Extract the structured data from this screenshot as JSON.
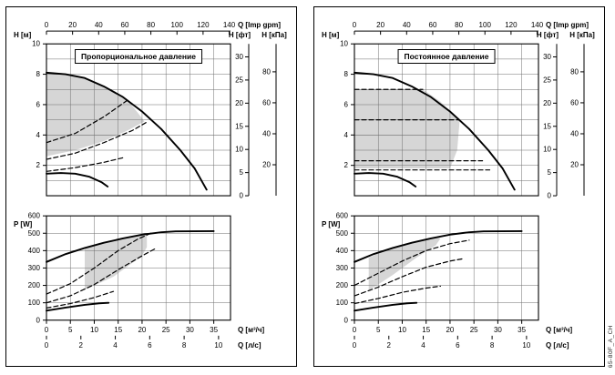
{
  "side_label": "65-80F_A_CH",
  "colors": {
    "curve": "#000000",
    "grid": "#6e6e6e",
    "shade": "#d6d6d6"
  },
  "chart_data": [
    {
      "type": "line",
      "title": "Пропорциональное давление",
      "x_axes": {
        "primary": {
          "label": "Q [м³/ч]",
          "ticks": [
            0,
            5,
            10,
            15,
            20,
            25,
            30,
            35
          ],
          "range": [
            0,
            38.5
          ]
        },
        "top_gpm": {
          "label": "Q [Imp gpm]",
          "ticks": [
            0,
            20,
            40,
            60,
            80,
            100,
            120,
            140
          ],
          "m3h_per_unit": 0.273
        },
        "bottom_ls": {
          "label": "Q [л/с]",
          "ticks": [
            0,
            2,
            4,
            6,
            8,
            10
          ],
          "m3h_per_unit": 3.6
        }
      },
      "y_axes": {
        "head_m": {
          "label": "H [м]",
          "ticks": [
            2,
            4,
            6,
            8,
            10
          ],
          "range": [
            0,
            10
          ]
        },
        "head_ft": {
          "label": "H [фт]",
          "ticks": [
            0,
            5,
            10,
            15,
            20,
            25,
            30
          ],
          "m_per_unit": 0.3048
        },
        "head_kpa": {
          "label": "H [кПа]",
          "ticks": [
            20,
            40,
            60,
            80
          ],
          "m_per_unit": 0.102
        },
        "power_w": {
          "label": "P [W]",
          "ticks": [
            0,
            100,
            200,
            300,
            400,
            500,
            600
          ],
          "range": [
            0,
            600
          ]
        }
      },
      "head_series": [
        {
          "name": "max-speed",
          "style": "solid",
          "points": [
            [
              0,
              8.1
            ],
            [
              4,
              8.0
            ],
            [
              8,
              7.75
            ],
            [
              12,
              7.2
            ],
            [
              16,
              6.5
            ],
            [
              20,
              5.55
            ],
            [
              24,
              4.4
            ],
            [
              28,
              3.0
            ],
            [
              31,
              1.8
            ],
            [
              33.5,
              0.4
            ]
          ]
        },
        {
          "name": "min-speed",
          "style": "solid",
          "points": [
            [
              0,
              1.45
            ],
            [
              3,
              1.5
            ],
            [
              6,
              1.45
            ],
            [
              9,
              1.25
            ],
            [
              11.5,
              0.9
            ],
            [
              12.8,
              0.6
            ]
          ]
        },
        {
          "name": "prop-setting-1",
          "style": "dashed",
          "points": [
            [
              0,
              3.5
            ],
            [
              6,
              4.1
            ],
            [
              12,
              5.2
            ],
            [
              17,
              6.3
            ]
          ]
        },
        {
          "name": "prop-setting-2",
          "style": "dashed",
          "points": [
            [
              0,
              2.4
            ],
            [
              6,
              2.8
            ],
            [
              12,
              3.5
            ],
            [
              18,
              4.3
            ],
            [
              21,
              4.85
            ]
          ]
        },
        {
          "name": "prop-setting-3",
          "style": "dashed",
          "points": [
            [
              0,
              1.6
            ],
            [
              6,
              1.85
            ],
            [
              12,
              2.2
            ],
            [
              16,
              2.5
            ]
          ]
        }
      ],
      "head_shade": [
        [
          0,
          2.6
        ],
        [
          6,
          3.0
        ],
        [
          12,
          3.6
        ],
        [
          17,
          4.3
        ],
        [
          20.5,
          4.9
        ],
        [
          17,
          6.3
        ],
        [
          13,
          7.05
        ],
        [
          8,
          7.75
        ],
        [
          4,
          8.0
        ],
        [
          0,
          8.1
        ]
      ],
      "power_series": [
        {
          "name": "max-speed",
          "style": "solid",
          "points": [
            [
              0,
              335
            ],
            [
              4,
              380
            ],
            [
              8,
              415
            ],
            [
              12,
              445
            ],
            [
              16,
              470
            ],
            [
              20,
              492
            ],
            [
              24,
              506
            ],
            [
              27,
              511
            ],
            [
              35,
              512
            ]
          ]
        },
        {
          "name": "min-speed",
          "style": "solid",
          "points": [
            [
              0,
              55
            ],
            [
              4,
              72
            ],
            [
              8,
              88
            ],
            [
              11,
              97
            ],
            [
              13,
              100
            ]
          ]
        },
        {
          "name": "prop-power-1",
          "style": "dashed",
          "points": [
            [
              0,
              150
            ],
            [
              5,
              210
            ],
            [
              10,
              300
            ],
            [
              15,
              400
            ],
            [
              19,
              465
            ],
            [
              22,
              502
            ]
          ]
        },
        {
          "name": "prop-power-2",
          "style": "dashed",
          "points": [
            [
              0,
              100
            ],
            [
              5,
              140
            ],
            [
              10,
              205
            ],
            [
              15,
              290
            ],
            [
              20,
              370
            ],
            [
              23,
              415
            ]
          ]
        },
        {
          "name": "prop-power-3",
          "style": "dashed",
          "points": [
            [
              0,
              70
            ],
            [
              5,
              95
            ],
            [
              10,
              130
            ],
            [
              14,
              165
            ]
          ]
        }
      ],
      "power_shade": [
        [
          8,
          175
        ],
        [
          14,
          250
        ],
        [
          20,
          370
        ],
        [
          21,
          420
        ],
        [
          21,
          497
        ],
        [
          16,
          470
        ],
        [
          12,
          445
        ],
        [
          8,
          415
        ]
      ]
    },
    {
      "type": "line",
      "title": "Постоянное давление",
      "x_axes": {
        "primary": {
          "label": "Q [м³/ч]",
          "ticks": [
            0,
            5,
            10,
            15,
            20,
            25,
            30,
            35
          ],
          "range": [
            0,
            38.5
          ]
        },
        "top_gpm": {
          "label": "Q [Imp gpm]",
          "ticks": [
            0,
            20,
            40,
            60,
            80,
            100,
            120,
            140
          ],
          "m3h_per_unit": 0.273
        },
        "bottom_ls": {
          "label": "Q [л/с]",
          "ticks": [
            0,
            2,
            4,
            6,
            8,
            10
          ],
          "m3h_per_unit": 3.6
        }
      },
      "y_axes": {
        "head_m": {
          "label": "H [м]",
          "ticks": [
            2,
            4,
            6,
            8,
            10
          ],
          "range": [
            0,
            10
          ]
        },
        "head_ft": {
          "label": "H [фт]",
          "ticks": [
            0,
            5,
            10,
            15,
            20,
            25,
            30
          ],
          "m_per_unit": 0.3048
        },
        "head_kpa": {
          "label": "H [кПа]",
          "ticks": [
            20,
            40,
            60,
            80
          ],
          "m_per_unit": 0.102
        },
        "power_w": {
          "label": "P [W]",
          "ticks": [
            0,
            100,
            200,
            300,
            400,
            500,
            600
          ],
          "range": [
            0,
            600
          ]
        }
      },
      "head_series": [
        {
          "name": "max-speed",
          "style": "solid",
          "points": [
            [
              0,
              8.1
            ],
            [
              4,
              8.0
            ],
            [
              8,
              7.75
            ],
            [
              12,
              7.2
            ],
            [
              16,
              6.5
            ],
            [
              20,
              5.55
            ],
            [
              24,
              4.4
            ],
            [
              28,
              3.0
            ],
            [
              31,
              1.8
            ],
            [
              33.5,
              0.4
            ]
          ]
        },
        {
          "name": "min-speed",
          "style": "solid",
          "points": [
            [
              0,
              1.45
            ],
            [
              3,
              1.5
            ],
            [
              6,
              1.45
            ],
            [
              9,
              1.25
            ],
            [
              11.5,
              0.9
            ],
            [
              12.8,
              0.6
            ]
          ]
        },
        {
          "name": "const-setting-1",
          "style": "dashed",
          "points": [
            [
              0,
              7.0
            ],
            [
              14.3,
              7.0
            ]
          ]
        },
        {
          "name": "const-setting-2",
          "style": "dashed",
          "points": [
            [
              0,
              5.0
            ],
            [
              21.8,
              5.0
            ]
          ]
        },
        {
          "name": "const-setting-3",
          "style": "dashed",
          "points": [
            [
              0,
              2.3
            ],
            [
              26.8,
              2.3
            ]
          ]
        },
        {
          "name": "const-setting-4",
          "style": "dashed",
          "points": [
            [
              0,
              1.7
            ],
            [
              28.3,
              1.7
            ]
          ]
        }
      ],
      "head_shade": [
        [
          0,
          1.8
        ],
        [
          20,
          1.8
        ],
        [
          21.5,
          3.0
        ],
        [
          22,
          4.9
        ],
        [
          18,
          6.2
        ],
        [
          14.3,
          7.0
        ],
        [
          0,
          7.0
        ]
      ],
      "power_series": [
        {
          "name": "max-speed",
          "style": "solid",
          "points": [
            [
              0,
              335
            ],
            [
              4,
              380
            ],
            [
              8,
              415
            ],
            [
              12,
              445
            ],
            [
              16,
              470
            ],
            [
              20,
              492
            ],
            [
              24,
              506
            ],
            [
              27,
              511
            ],
            [
              35,
              512
            ]
          ]
        },
        {
          "name": "min-speed",
          "style": "solid",
          "points": [
            [
              0,
              55
            ],
            [
              4,
              72
            ],
            [
              8,
              88
            ],
            [
              11,
              97
            ],
            [
              13,
              100
            ]
          ]
        },
        {
          "name": "const-power-1",
          "style": "dashed",
          "points": [
            [
              0,
              200
            ],
            [
              5,
              270
            ],
            [
              10,
              340
            ],
            [
              15,
              400
            ],
            [
              20,
              440
            ],
            [
              24,
              460
            ]
          ]
        },
        {
          "name": "const-power-2",
          "style": "dashed",
          "points": [
            [
              0,
              140
            ],
            [
              5,
              190
            ],
            [
              10,
              250
            ],
            [
              15,
              305
            ],
            [
              20,
              340
            ],
            [
              23,
              355
            ]
          ]
        },
        {
          "name": "const-power-3",
          "style": "dashed",
          "points": [
            [
              0,
              95
            ],
            [
              5,
              125
            ],
            [
              10,
              160
            ],
            [
              15,
              185
            ],
            [
              18,
              195
            ]
          ]
        }
      ],
      "power_shade": [
        [
          3,
          170
        ],
        [
          8,
          260
        ],
        [
          13,
          360
        ],
        [
          17,
          430
        ],
        [
          18,
          470
        ],
        [
          17,
          480
        ],
        [
          12,
          445
        ],
        [
          6,
          395
        ],
        [
          3,
          360
        ]
      ]
    }
  ]
}
